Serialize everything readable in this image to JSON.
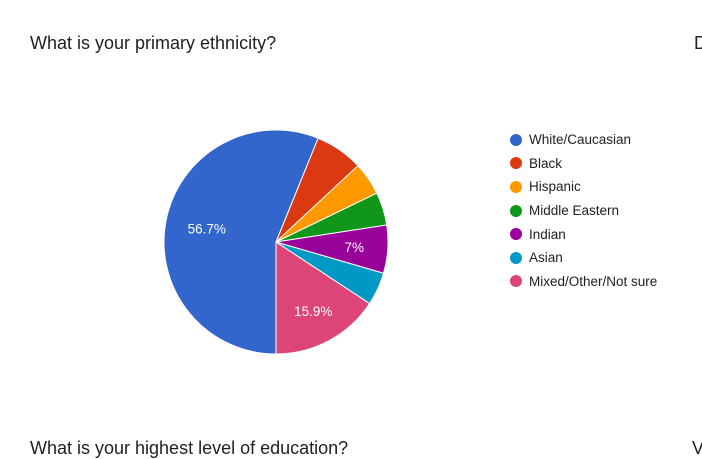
{
  "question": {
    "title": "What is your primary ethnicity?"
  },
  "next_question": {
    "title": "What is your highest level of education?"
  },
  "edge_text": {
    "top": "D",
    "bottom": "V"
  },
  "chart_data": {
    "type": "pie",
    "title": "",
    "series": [
      {
        "name": "White/Caucasian",
        "value": 56.7,
        "color": "#3366cc",
        "label": "56.7%"
      },
      {
        "name": "Black",
        "value": 7.0,
        "color": "#dc3912",
        "label": ""
      },
      {
        "name": "Hispanic",
        "value": 4.8,
        "color": "#ff9900",
        "label": ""
      },
      {
        "name": "Middle Eastern",
        "value": 4.8,
        "color": "#109618",
        "label": ""
      },
      {
        "name": "Indian",
        "value": 7.0,
        "color": "#990099",
        "label": "7%"
      },
      {
        "name": "Asian",
        "value": 4.8,
        "color": "#0099c6",
        "label": ""
      },
      {
        "name": "Mixed/Other/Not sure",
        "value": 15.9,
        "color": "#dd4477",
        "label": "15.9%"
      }
    ],
    "legend_position": "right"
  }
}
